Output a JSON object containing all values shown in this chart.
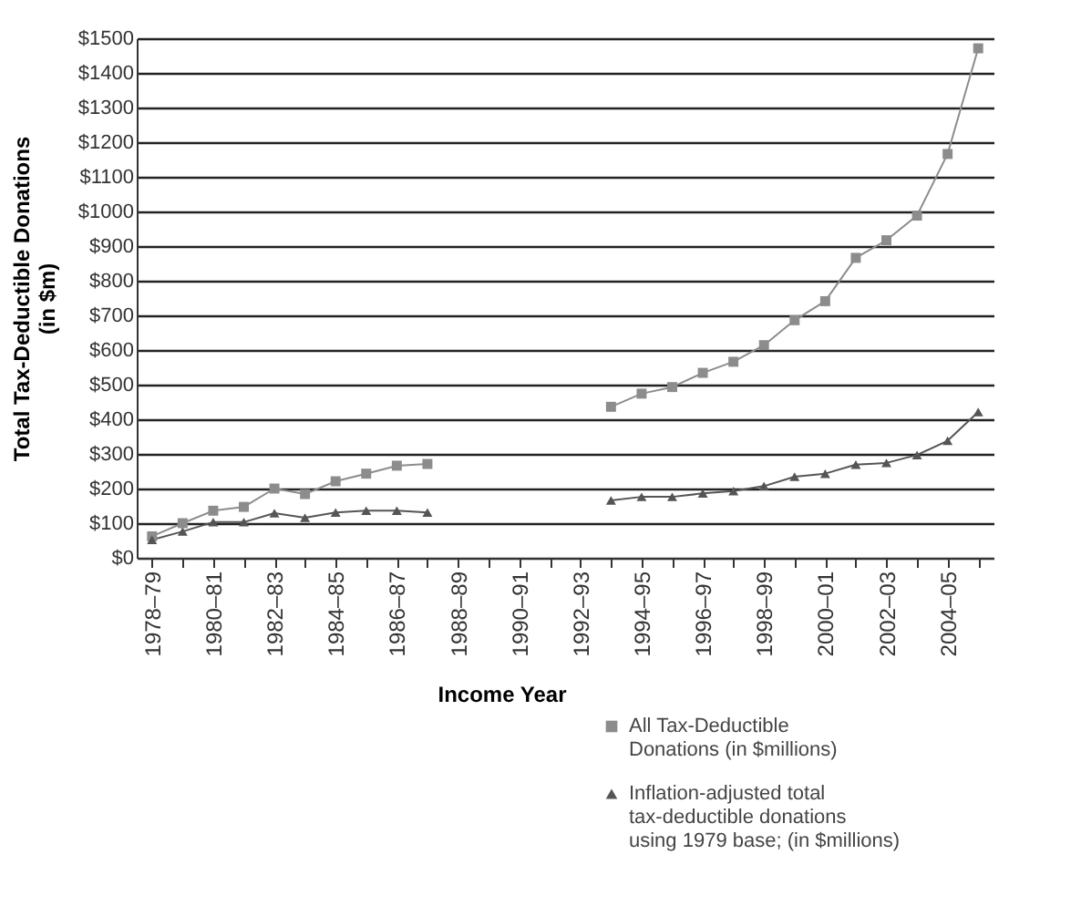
{
  "chart_data": {
    "type": "line",
    "ylabel": "Total Tax-Deductible Donations\n(in $m)",
    "xlabel": "Income Year",
    "categories": [
      "1978–79",
      null,
      "1980–81",
      null,
      "1982–83",
      null,
      "1984–85",
      null,
      "1986–87",
      null,
      "1988–89",
      null,
      "1990–91",
      null,
      "1992–93",
      null,
      "1994–95",
      null,
      "1996–97",
      null,
      "1998–99",
      null,
      "2000–01",
      null,
      "2002–03",
      null,
      "2004–05",
      null
    ],
    "series": [
      {
        "name": "All Tax-Deductible\nDonations (in $millions)",
        "color": "#8c8c8c",
        "marker": "square",
        "values": [
          62,
          100,
          136,
          147,
          200,
          184,
          221,
          243,
          266,
          271,
          null,
          null,
          null,
          null,
          null,
          436,
          474,
          493,
          534,
          566,
          614,
          686,
          741,
          866,
          917,
          988,
          1166,
          1471
        ]
      },
      {
        "name": "Inflation-adjusted total\ntax-deductible donations\nusing 1979 base; (in $millions)",
        "color": "#555555",
        "marker": "triangle",
        "values": [
          52,
          76,
          103,
          103,
          129,
          116,
          131,
          136,
          136,
          131,
          null,
          null,
          null,
          null,
          null,
          166,
          176,
          176,
          186,
          193,
          207,
          234,
          243,
          269,
          274,
          297,
          338,
          421
        ]
      }
    ],
    "ylim": [
      0,
      1500
    ],
    "yticks": [
      {
        "value": 0,
        "label": "$0"
      },
      {
        "value": 100,
        "label": "$100"
      },
      {
        "value": 200,
        "label": "$200"
      },
      {
        "value": 300,
        "label": "$300"
      },
      {
        "value": 400,
        "label": "$400"
      },
      {
        "value": 500,
        "label": "$500"
      },
      {
        "value": 600,
        "label": "$600"
      },
      {
        "value": 700,
        "label": "$700"
      },
      {
        "value": 800,
        "label": "$800"
      },
      {
        "value": 900,
        "label": "$900"
      },
      {
        "value": 1000,
        "label": "$1000"
      },
      {
        "value": 1100,
        "label": "$1100"
      },
      {
        "value": 1200,
        "label": "$1200"
      },
      {
        "value": 1300,
        "label": "$1300"
      },
      {
        "value": 1400,
        "label": "$1400"
      },
      {
        "value": 1500,
        "label": "$1500"
      }
    ],
    "grid": "y",
    "legend": "bottom right",
    "line_style": "solid"
  }
}
